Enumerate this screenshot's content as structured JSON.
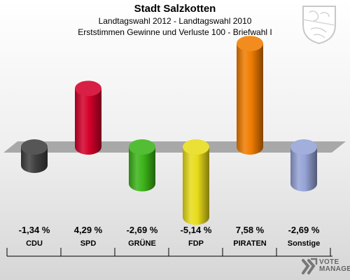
{
  "header": {
    "title": "Stadt Salzkotten",
    "subtitle": "Landtagswahl 2012 - Landtagswahl 2010",
    "subtitle2": "Erststimmen Gewinne und Verluste 100 - Briefwahl I"
  },
  "branding": {
    "line1": "VOTE",
    "line2": "MANAGER",
    "crest_icon": "coat-of-arms-icon",
    "brand_icon": "votemanager-logo-icon"
  },
  "chart_data": {
    "type": "bar",
    "title": "Stadt Salzkotten",
    "categories": [
      "CDU",
      "SPD",
      "GRÜNE",
      "FDP",
      "PIRATEN",
      "Sonstige"
    ],
    "values": [
      -1.34,
      4.29,
      -2.69,
      -5.14,
      7.58,
      -2.69
    ],
    "labels": [
      "-1,34 %",
      "4,29 %",
      "-2,69 %",
      "-5,14 %",
      "7,58 %",
      "-2,69 %"
    ],
    "colors": [
      "#3f3f3f",
      "#d3002b",
      "#3cb419",
      "#e8dc1a",
      "#f07c00",
      "#95a3d6"
    ],
    "xlabel": "",
    "ylabel": "",
    "ylim": [
      -6,
      8
    ],
    "grid": false,
    "legend": "none"
  }
}
